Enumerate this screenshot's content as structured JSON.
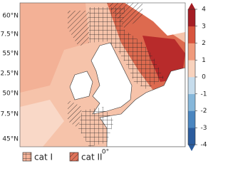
{
  "map": {
    "lat_labels": [
      "60°N",
      "57.5°N",
      "55°N",
      "52.5°N",
      "50°N",
      "47.5°N",
      "45°N"
    ],
    "lon_label": "0°",
    "colorbar": {
      "lim": [
        -4,
        4
      ],
      "ticks": [
        4,
        3,
        2,
        1,
        0,
        -1,
        -2,
        -3,
        -4
      ],
      "colors": [
        "#2b5c9e",
        "#4a86c0",
        "#86b7da",
        "#c6dcec",
        "#f8d2bd",
        "#f09a7c",
        "#d8543e",
        "#a51d24"
      ]
    },
    "legend": [
      "cat I",
      "cat II"
    ]
  }
}
